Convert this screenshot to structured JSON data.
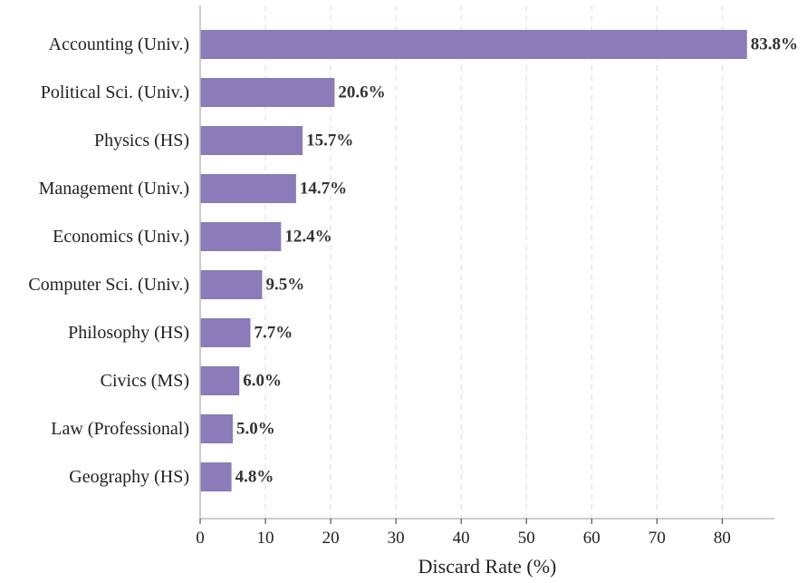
{
  "chart_data": {
    "type": "bar",
    "orientation": "horizontal",
    "categories": [
      "Accounting (Univ.)",
      "Political Sci. (Univ.)",
      "Physics (HS)",
      "Management (Univ.)",
      "Economics (Univ.)",
      "Computer Sci. (Univ.)",
      "Philosophy (HS)",
      "Civics (MS)",
      "Law (Professional)",
      "Geography (HS)"
    ],
    "values": [
      83.8,
      20.6,
      15.7,
      14.7,
      12.4,
      9.5,
      7.7,
      6.0,
      5.0,
      4.8
    ],
    "value_labels": [
      "83.8%",
      "20.6%",
      "15.7%",
      "14.7%",
      "12.4%",
      "9.5%",
      "7.7%",
      "6.0%",
      "5.0%",
      "4.8%"
    ],
    "xlabel": "Discard Rate (%)",
    "xlim": [
      0,
      88
    ],
    "xticks": [
      0,
      10,
      20,
      30,
      40,
      50,
      60,
      70,
      80
    ],
    "xtick_labels": [
      "0",
      "10",
      "20",
      "30",
      "40",
      "50",
      "60",
      "70",
      "80"
    ],
    "grid": "vertical dashed",
    "colors": {
      "bar": "#8b7bb8",
      "grid": "#dddddd",
      "axis": "#bbbbbb",
      "text": "#222222",
      "value_text": "#333333"
    }
  }
}
